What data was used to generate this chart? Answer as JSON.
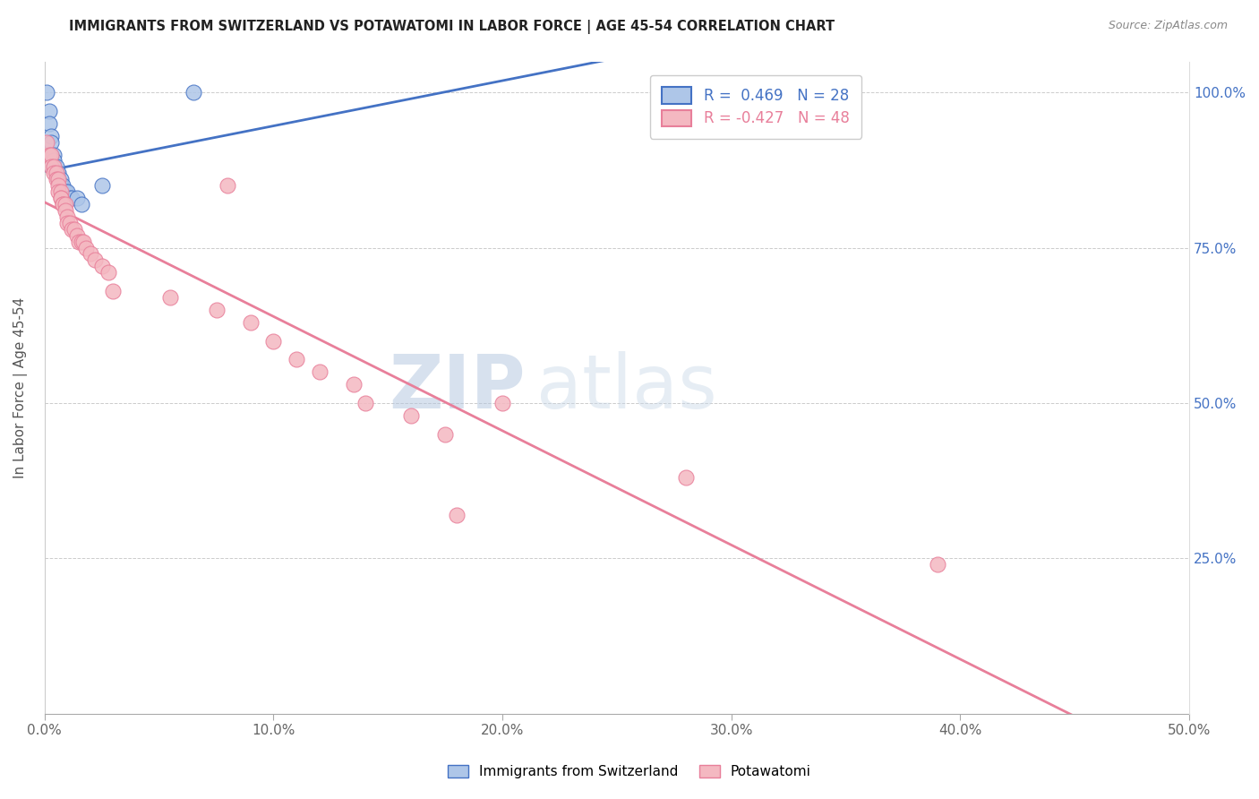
{
  "title": "IMMIGRANTS FROM SWITZERLAND VS POTAWATOMI IN LABOR FORCE | AGE 45-54 CORRELATION CHART",
  "source": "Source: ZipAtlas.com",
  "ylabel": "In Labor Force | Age 45-54",
  "xlim": [
    0.0,
    0.5
  ],
  "ylim": [
    0.0,
    1.05
  ],
  "yticks": [
    0.25,
    0.5,
    0.75,
    1.0
  ],
  "ytick_labels": [
    "25.0%",
    "50.0%",
    "75.0%",
    "100.0%"
  ],
  "xticks": [
    0.0,
    0.1,
    0.2,
    0.3,
    0.4,
    0.5
  ],
  "xtick_labels": [
    "0.0%",
    "10.0%",
    "20.0%",
    "30.0%",
    "40.0%",
    "50.0%"
  ],
  "switzerland_R": 0.469,
  "switzerland_N": 28,
  "potawatomi_R": -0.427,
  "potawatomi_N": 48,
  "switzerland_color": "#aec6e8",
  "potawatomi_color": "#f4b8c1",
  "switzerland_line_color": "#4472c4",
  "potawatomi_line_color": "#e87f9a",
  "watermark_zip": "ZIP",
  "watermark_atlas": "atlas",
  "switzerland_x": [
    0.001,
    0.002,
    0.002,
    0.003,
    0.003,
    0.003,
    0.004,
    0.004,
    0.004,
    0.005,
    0.005,
    0.005,
    0.006,
    0.006,
    0.006,
    0.007,
    0.007,
    0.007,
    0.008,
    0.008,
    0.009,
    0.01,
    0.011,
    0.012,
    0.014,
    0.016,
    0.025,
    0.065
  ],
  "switzerland_y": [
    1.0,
    0.97,
    0.95,
    0.93,
    0.92,
    0.9,
    0.9,
    0.89,
    0.88,
    0.88,
    0.87,
    0.87,
    0.87,
    0.86,
    0.86,
    0.86,
    0.85,
    0.85,
    0.85,
    0.84,
    0.84,
    0.84,
    0.83,
    0.83,
    0.83,
    0.82,
    0.85,
    1.0
  ],
  "potawatomi_x": [
    0.001,
    0.002,
    0.003,
    0.003,
    0.004,
    0.004,
    0.005,
    0.005,
    0.006,
    0.006,
    0.006,
    0.007,
    0.007,
    0.007,
    0.008,
    0.008,
    0.009,
    0.009,
    0.01,
    0.01,
    0.011,
    0.012,
    0.013,
    0.014,
    0.015,
    0.016,
    0.017,
    0.018,
    0.02,
    0.022,
    0.025,
    0.028,
    0.03,
    0.055,
    0.075,
    0.08,
    0.09,
    0.1,
    0.11,
    0.12,
    0.135,
    0.14,
    0.16,
    0.175,
    0.18,
    0.2,
    0.28,
    0.39
  ],
  "potawatomi_y": [
    0.92,
    0.9,
    0.9,
    0.88,
    0.88,
    0.87,
    0.87,
    0.86,
    0.86,
    0.85,
    0.84,
    0.84,
    0.83,
    0.83,
    0.82,
    0.82,
    0.82,
    0.81,
    0.8,
    0.79,
    0.79,
    0.78,
    0.78,
    0.77,
    0.76,
    0.76,
    0.76,
    0.75,
    0.74,
    0.73,
    0.72,
    0.71,
    0.68,
    0.67,
    0.65,
    0.85,
    0.63,
    0.6,
    0.57,
    0.55,
    0.53,
    0.5,
    0.48,
    0.45,
    0.32,
    0.5,
    0.38,
    0.24
  ]
}
